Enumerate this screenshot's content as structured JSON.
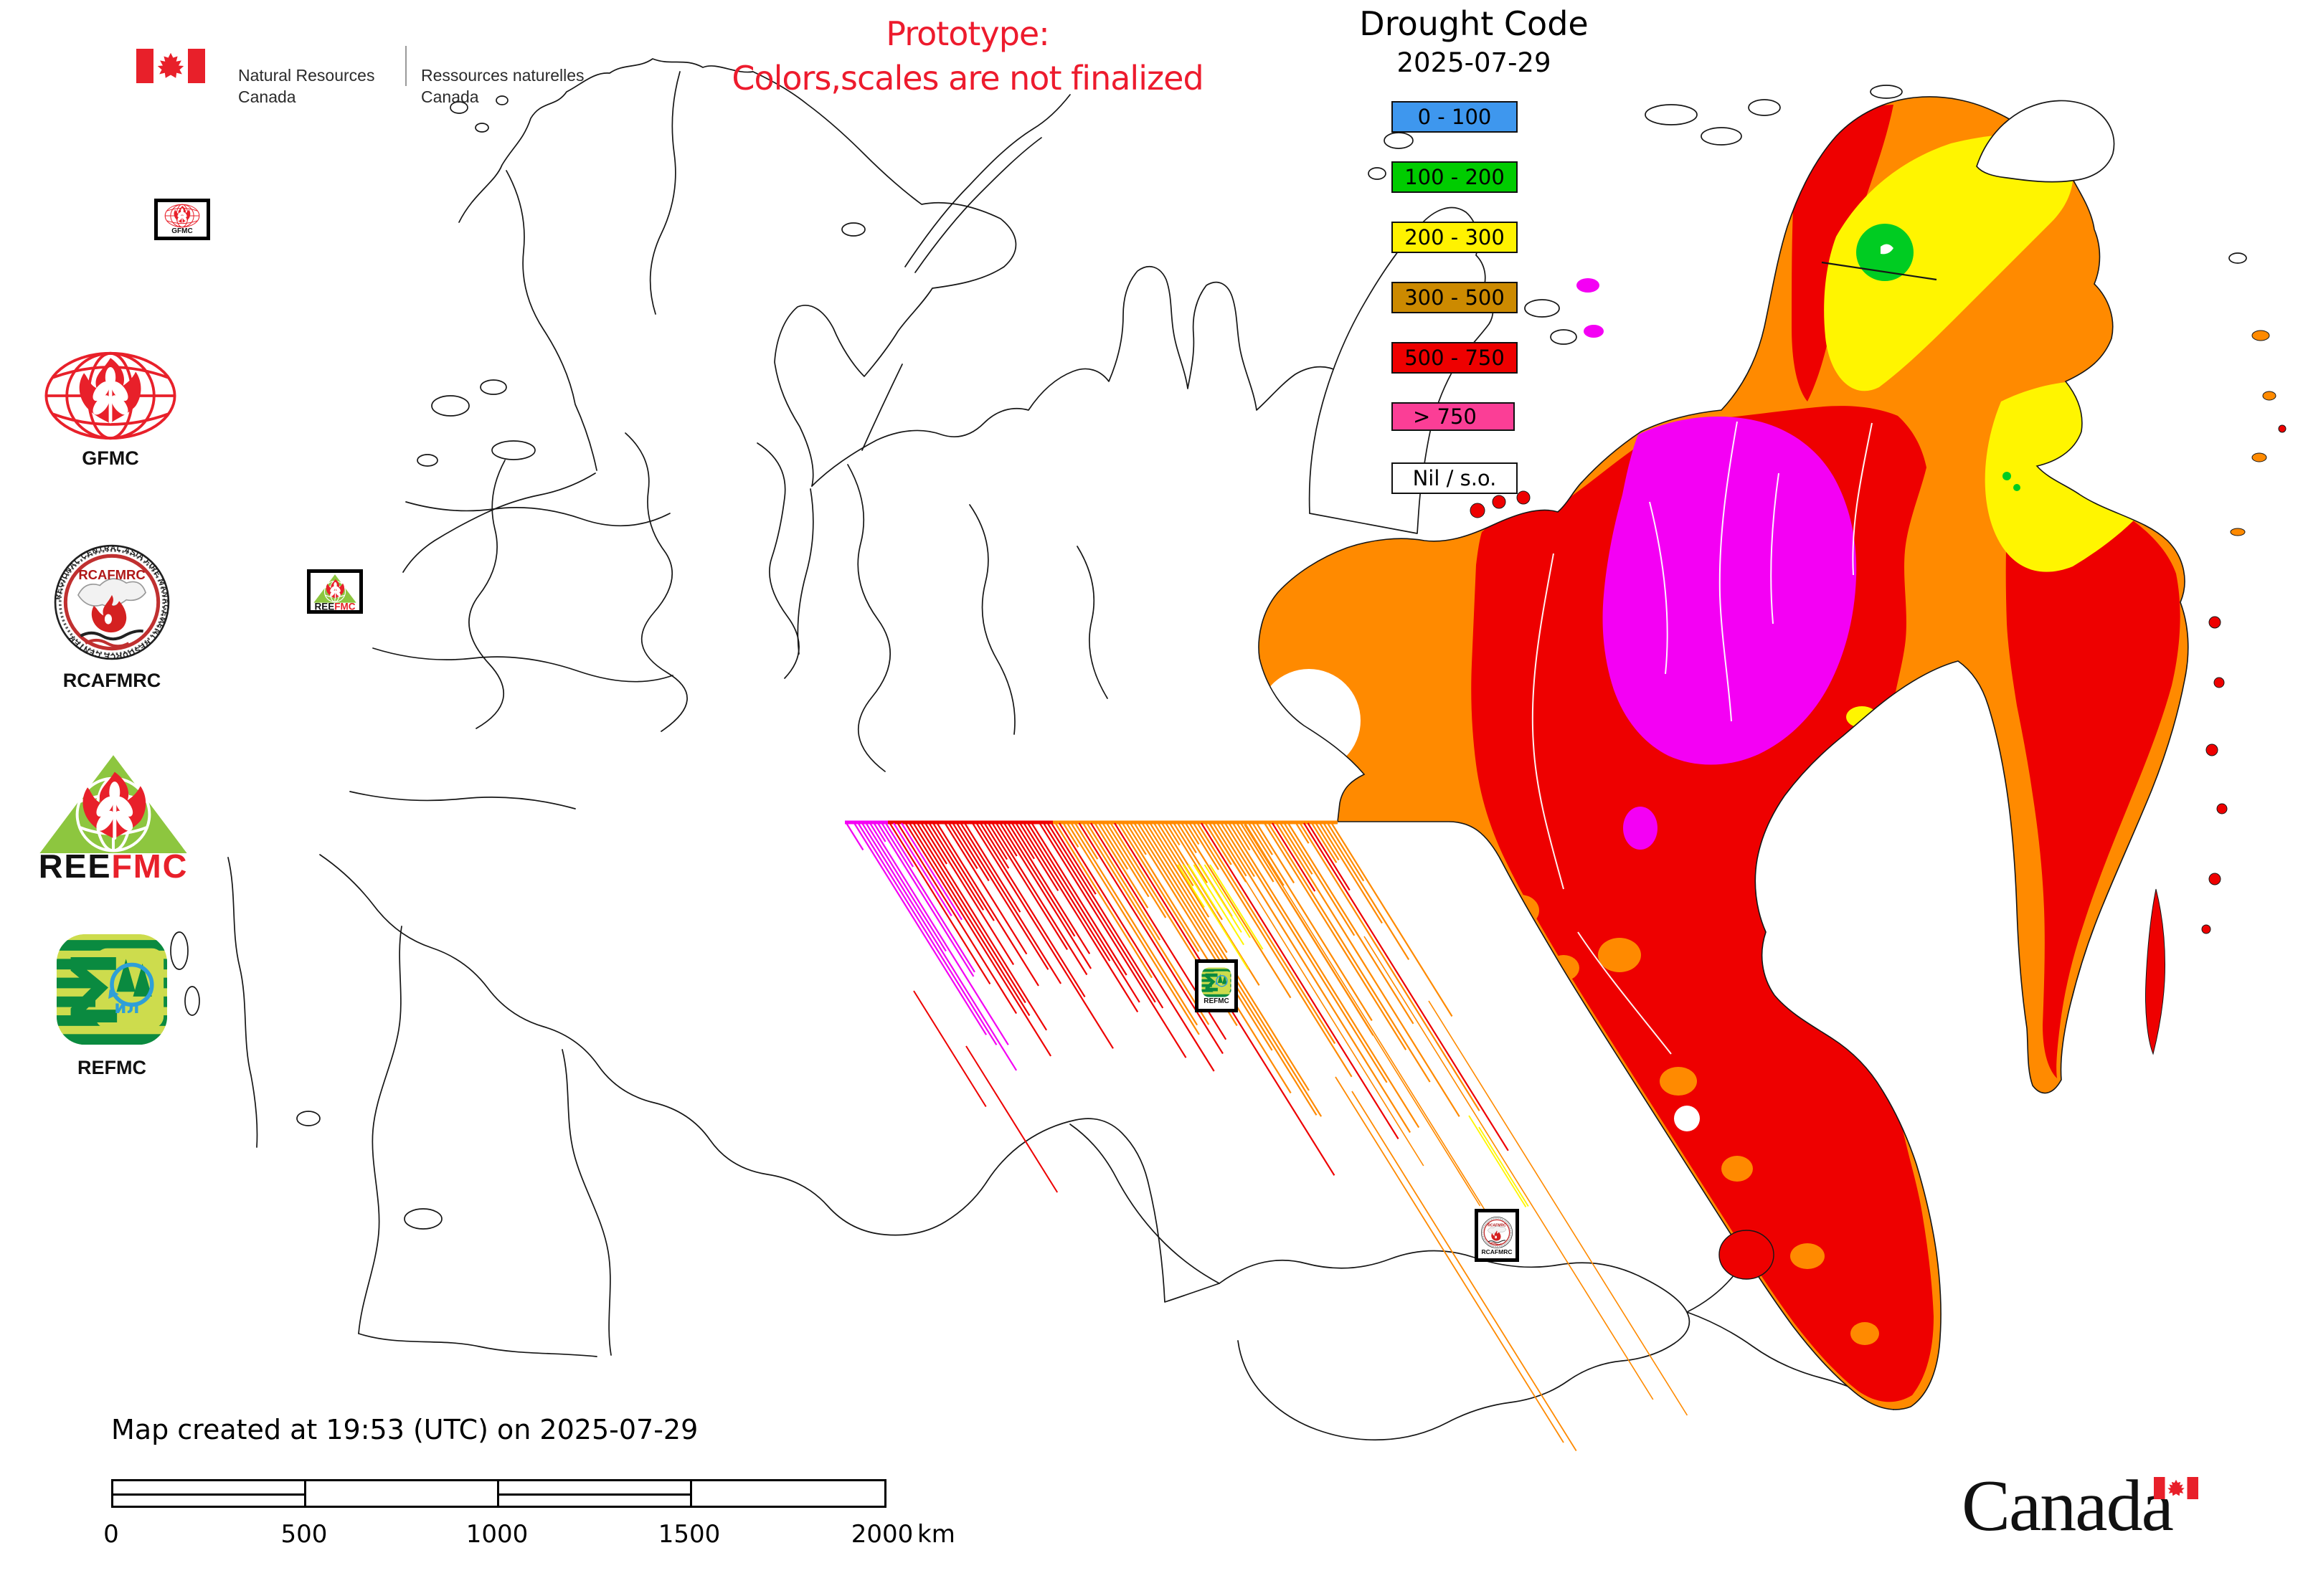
{
  "header": {
    "dept_en_1": "Natural Resources",
    "dept_en_2": "Canada",
    "dept_fr_1": "Ressources naturelles",
    "dept_fr_2": "Canada"
  },
  "prototype_note": {
    "line1": "Prototype:",
    "line2": "Colors,scales are not finalized"
  },
  "legend": {
    "title": "Drought Code",
    "date": "2025-07-29",
    "items": [
      {
        "label": "0 - 100",
        "color": "#3E97EE"
      },
      {
        "label": "100 - 200",
        "color": "#00CC00"
      },
      {
        "label": "200 - 300",
        "color": "#FFF200"
      },
      {
        "label": "300 - 500",
        "color": "#CC8A00"
      },
      {
        "label": "500 - 750",
        "color": "#EE0000"
      },
      {
        "label": "> 750",
        "color": "#FB3E96"
      },
      {
        "label": "Nil / s.o.",
        "color": "#FFFFFF"
      }
    ]
  },
  "sidebar": {
    "logos": [
      {
        "id": "gfmc",
        "label": "GFMC"
      },
      {
        "id": "rcafmrc",
        "label": "RCAFMRC",
        "inner_text": "RCAFMRC",
        "ring_text": "REGIONAL CENTRAL ASIA FIRE MANAGEMENT RESOURCE CENTER"
      },
      {
        "id": "reefmc",
        "label_black": "REE",
        "label_red": "FMC"
      },
      {
        "id": "refmc",
        "label": "REFMC",
        "inner_text": "ил",
        "sigma": "Σ"
      }
    ]
  },
  "map": {
    "colors": {
      "orange": "#FF8A00",
      "red": "#EE0000",
      "magenta": "#F400F4",
      "yellow": "#FFF500",
      "green": "#00CC22"
    },
    "markers": [
      {
        "id": "gfmc",
        "label": "GFMC"
      },
      {
        "id": "reefmc",
        "label_black": "REE",
        "label_red": "FMC"
      },
      {
        "id": "refmc",
        "label": "REFMC"
      },
      {
        "id": "rcafmrc",
        "label": "RCAFMRC",
        "inner_text": "RCAFMRC"
      }
    ]
  },
  "footer": {
    "created_text": "Map created at 19:53 (UTC) on 2025-07-29",
    "scalebar": {
      "labels": [
        "0",
        "500",
        "1000",
        "1500",
        "2000"
      ],
      "unit": "km"
    },
    "wordmark": "Canada"
  }
}
